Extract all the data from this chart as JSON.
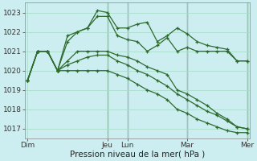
{
  "background_color": "#cceef0",
  "grid_color": "#aaddcc",
  "line_color": "#2d6a2d",
  "vline_color": "#446644",
  "xlabel": "Pression niveau de la mer( hPa )",
  "ylim": [
    1016.5,
    1023.5
  ],
  "yticks": [
    1017,
    1018,
    1019,
    1020,
    1021,
    1022,
    1023
  ],
  "xlim": [
    -0.3,
    22.3
  ],
  "xtick_positions": [
    0,
    8,
    10,
    16,
    22
  ],
  "xtick_labels": [
    "Dim",
    "Jeu",
    "Lun",
    "Mar",
    "Mer"
  ],
  "vlines": [
    8,
    10,
    16,
    22
  ],
  "lines": [
    [
      1019.5,
      1021.0,
      1021.0,
      1020.0,
      1021.8,
      1022.0,
      1022.2,
      1023.1,
      1023.0,
      1022.2,
      1022.2,
      1022.4,
      1022.5,
      1021.5,
      1021.8,
      1022.2,
      1021.9,
      1021.5,
      1021.3,
      1021.2,
      1021.1,
      1020.5,
      1020.5
    ],
    [
      1019.5,
      1021.0,
      1021.0,
      1020.0,
      1021.5,
      1022.0,
      1022.2,
      1022.8,
      1022.8,
      1021.8,
      1021.6,
      1021.5,
      1021.0,
      1021.3,
      1021.7,
      1021.0,
      1021.2,
      1021.0,
      1021.0,
      1021.0,
      1021.0,
      1020.5,
      1020.5
    ],
    [
      1019.5,
      1021.0,
      1021.0,
      1020.0,
      1020.5,
      1021.0,
      1021.0,
      1021.0,
      1021.0,
      1020.8,
      1020.7,
      1020.5,
      1020.2,
      1020.0,
      1019.8,
      1019.0,
      1018.8,
      1018.5,
      1018.2,
      1017.8,
      1017.5,
      1017.1,
      1017.0
    ],
    [
      1019.5,
      1021.0,
      1021.0,
      1020.0,
      1020.3,
      1020.5,
      1020.7,
      1020.8,
      1020.8,
      1020.5,
      1020.3,
      1020.0,
      1019.8,
      1019.5,
      1019.2,
      1018.8,
      1018.5,
      1018.2,
      1017.9,
      1017.7,
      1017.4,
      1017.1,
      1017.0
    ],
    [
      1019.5,
      1021.0,
      1021.0,
      1020.0,
      1020.0,
      1020.0,
      1020.0,
      1020.0,
      1020.0,
      1019.8,
      1019.6,
      1019.3,
      1019.0,
      1018.8,
      1018.5,
      1018.0,
      1017.8,
      1017.5,
      1017.3,
      1017.1,
      1016.9,
      1016.8,
      1016.8
    ]
  ]
}
